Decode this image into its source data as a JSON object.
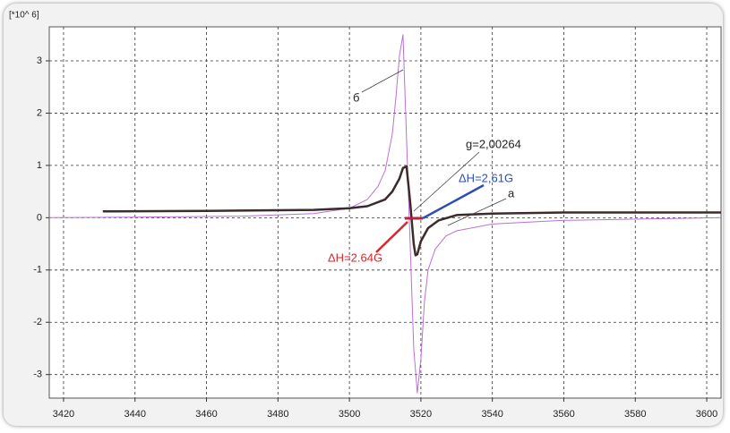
{
  "chart_data": {
    "type": "line",
    "unit_label": "[*10^ 6]",
    "x": [
      3416,
      3440,
      3470,
      3490,
      3500,
      3505,
      3508,
      3510,
      3512,
      3513,
      3514,
      3515,
      3516,
      3517,
      3518,
      3519,
      3520,
      3521,
      3522,
      3524,
      3527,
      3530,
      3540,
      3560,
      3604
    ],
    "series": [
      {
        "name": "б",
        "color": "#bb6fd8",
        "width": 1,
        "x": [
          3416,
          3440,
          3470,
          3490,
          3500,
          3505,
          3508,
          3510,
          3512,
          3513,
          3514,
          3515,
          3516,
          3517,
          3518,
          3519,
          3520,
          3521,
          3522,
          3524,
          3527,
          3530,
          3540,
          3560,
          3604
        ],
        "values": [
          0,
          0.01,
          0.03,
          0.08,
          0.18,
          0.35,
          0.6,
          0.9,
          1.6,
          2.3,
          3.1,
          3.5,
          1.5,
          -0.5,
          -2.5,
          -3.35,
          -2.7,
          -1.6,
          -1.0,
          -0.6,
          -0.35,
          -0.25,
          -0.12,
          -0.05,
          0
        ]
      },
      {
        "name": "а",
        "color": "#3b2b2b",
        "width": 2.5,
        "x": [
          3431,
          3460,
          3490,
          3500,
          3505,
          3510,
          3512,
          3514,
          3515,
          3516,
          3517,
          3518,
          3518.5,
          3519,
          3520,
          3522,
          3525,
          3530,
          3540,
          3560,
          3604
        ],
        "values": [
          0.12,
          0.13,
          0.15,
          0.18,
          0.22,
          0.35,
          0.5,
          0.75,
          0.95,
          0.98,
          0.3,
          -0.5,
          -0.72,
          -0.7,
          -0.45,
          -0.2,
          -0.05,
          0.05,
          0.08,
          0.1,
          0.1
        ]
      }
    ],
    "annotations": [
      {
        "text": "б",
        "color": "#222222"
      },
      {
        "text": "g=2,00264",
        "color": "#222222"
      },
      {
        "text": "ΔH=2,61G",
        "color": "#2a4fb5"
      },
      {
        "text": "а",
        "color": "#222222"
      },
      {
        "text": "ΔH=2.64G",
        "color": "#d9262c"
      }
    ],
    "xlim": [
      3416,
      3604
    ],
    "ylim": [
      -3.45,
      3.65
    ],
    "xticks": [
      3420,
      3440,
      3460,
      3480,
      3500,
      3520,
      3540,
      3560,
      3580,
      3600
    ],
    "yticks": [
      -3,
      -2,
      -1,
      0,
      1,
      2,
      3
    ],
    "grid": true
  }
}
